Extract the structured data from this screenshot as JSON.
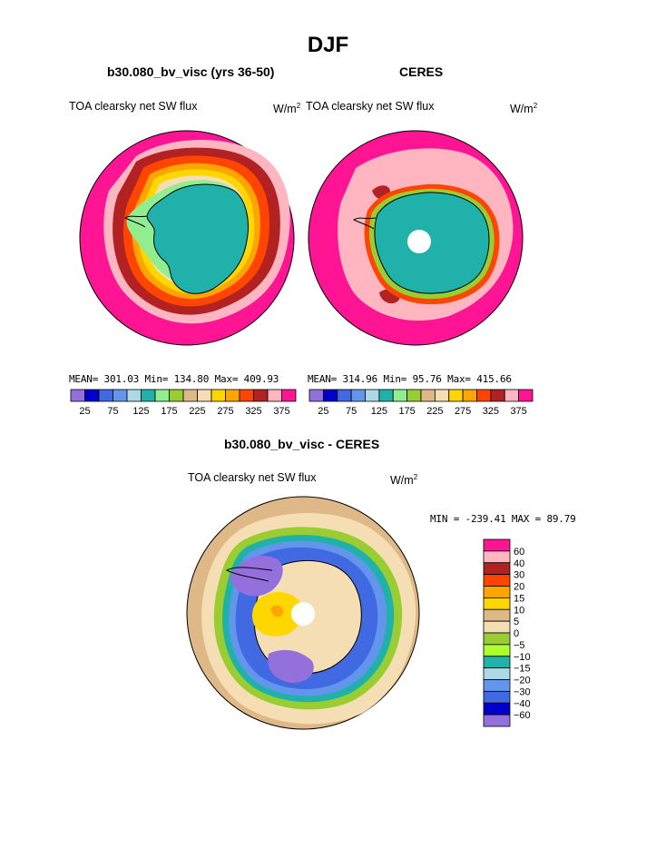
{
  "main_title": "DJF",
  "units_base": "W/m",
  "units_exp": "2",
  "panels": [
    {
      "title": "b30.080_bv_visc (yrs 36-50)",
      "variable": "TOA clearsky net SW flux",
      "stats": "MEAN= 301.03  Min= 134.80  Max= 409.93"
    },
    {
      "title": "CERES",
      "variable": "TOA clearsky net SW flux",
      "stats": "MEAN= 314.96  Min=  95.76  Max= 415.66"
    },
    {
      "title": "b30.080_bv_visc - CERES",
      "variable": "TOA clearsky net SW flux",
      "stats": "MIN = -239.41 MAX =  89.79"
    }
  ],
  "colorbar_top": {
    "colors": [
      "#9370db",
      "#0000cd",
      "#4169e1",
      "#6495ed",
      "#add8e6",
      "#20b2aa",
      "#90ee90",
      "#9acd32",
      "#deb887",
      "#f5deb3",
      "#ffd700",
      "#ffa500",
      "#ff4500",
      "#b22222",
      "#ffb6c1",
      "#ff1493"
    ],
    "tick_labels": [
      "25",
      "75",
      "125",
      "175",
      "225",
      "275",
      "325",
      "375"
    ]
  },
  "colorbar_diff": {
    "colors": [
      "#ff1493",
      "#ffb6c1",
      "#b22222",
      "#ff4500",
      "#ffa500",
      "#ffd700",
      "#deb887",
      "#f5deb3",
      "#9acd32",
      "#adff2f",
      "#20b2aa",
      "#add8e6",
      "#6495ed",
      "#4169e1",
      "#0000cd",
      "#9370db"
    ],
    "tick_labels": [
      "60",
      "40",
      "30",
      "20",
      "15",
      "10",
      "5",
      "0",
      "−5",
      "−10",
      "−15",
      "−20",
      "−30",
      "−40",
      "−60"
    ]
  }
}
